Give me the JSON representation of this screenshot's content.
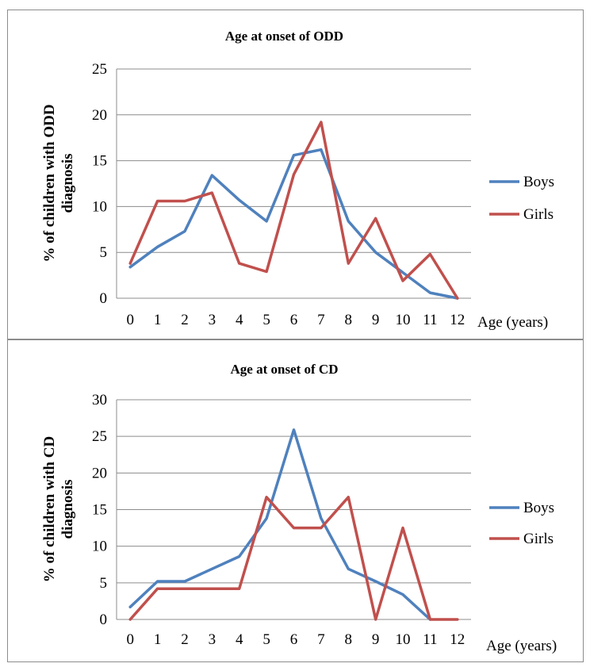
{
  "chart_data": [
    {
      "type": "line",
      "title": "Age at onset of ODD",
      "ylabel": "% of children with ODD diagnosis",
      "ylabel_lines": [
        "% of children with ODD",
        "diagnosis"
      ],
      "xlabel": "Age (years)",
      "categories": [
        "0",
        "1",
        "2",
        "3",
        "4",
        "5",
        "6",
        "7",
        "8",
        "9",
        "10",
        "11",
        "12"
      ],
      "ylim": [
        0,
        25
      ],
      "yticks": [
        0,
        5,
        10,
        15,
        20,
        25
      ],
      "grid": true,
      "legend_position": "right",
      "series": [
        {
          "name": "Boys",
          "color": "#4f81bd",
          "values": [
            3.4,
            5.6,
            7.3,
            13.4,
            10.7,
            8.4,
            15.6,
            16.2,
            8.4,
            5.0,
            2.8,
            0.6,
            0
          ]
        },
        {
          "name": "Girls",
          "color": "#c0504d",
          "values": [
            3.8,
            10.6,
            10.6,
            11.5,
            3.8,
            2.9,
            13.5,
            19.2,
            3.8,
            8.7,
            1.9,
            4.8,
            0
          ]
        }
      ]
    },
    {
      "type": "line",
      "title": "Age at onset of CD",
      "ylabel": "% of children with CD diagnosis",
      "ylabel_lines": [
        "% of children with CD",
        "diagnosis"
      ],
      "xlabel": "Age (years)",
      "categories": [
        "0",
        "1",
        "2",
        "3",
        "4",
        "5",
        "6",
        "7",
        "8",
        "9",
        "10",
        "11",
        "12"
      ],
      "ylim": [
        0,
        30
      ],
      "yticks": [
        0,
        5,
        10,
        15,
        20,
        25,
        30
      ],
      "grid": true,
      "legend_position": "right",
      "series": [
        {
          "name": "Boys",
          "color": "#4f81bd",
          "values": [
            1.7,
            5.2,
            5.2,
            6.9,
            8.6,
            13.8,
            25.9,
            13.8,
            6.9,
            5.2,
            3.4,
            0,
            null
          ]
        },
        {
          "name": "Girls",
          "color": "#c0504d",
          "values": [
            0,
            4.2,
            4.2,
            4.2,
            4.2,
            16.7,
            12.5,
            12.5,
            16.7,
            0,
            12.5,
            0,
            0
          ]
        }
      ]
    }
  ]
}
